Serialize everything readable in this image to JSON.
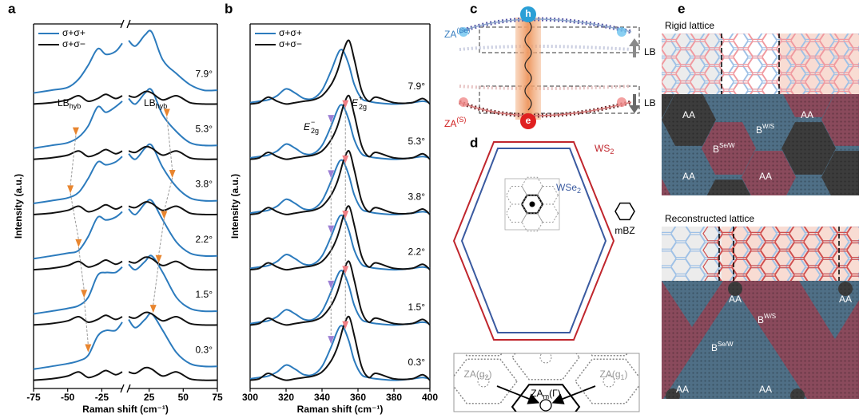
{
  "chart_data": [
    {
      "type": "line",
      "panel": "a",
      "xlabel": "Raman shift (cm⁻¹)",
      "ylabel": "Intensity (a.u.)",
      "x": [
        -75,
        -62,
        -50,
        -42,
        -35,
        -28,
        -22,
        -15,
        -10,
        10,
        15,
        22,
        27,
        35,
        45,
        55,
        65,
        75
      ],
      "xlim": [
        -75,
        75
      ],
      "xticks": [
        -75,
        -50,
        -25,
        25,
        50,
        75
      ],
      "xbreak": [
        -10,
        10
      ],
      "ylim": [
        -0.3,
        12.9
      ],
      "legend": "upper left",
      "labels": [
        "7.9°",
        "5.3°",
        "3.8°",
        "2.2°",
        "1.5°",
        "0.3°"
      ],
      "series": [
        {
          "name": "σ+σ+",
          "color": "#2c7bbd",
          "values": [
            [
              10.4,
              10.5,
              10.6,
              10.9,
              11.4,
              12.0,
              11.8,
              11.9,
              12.2,
              12.3,
              12.1,
              12.5,
              12.6,
              11.6,
              11.1,
              10.7,
              10.5,
              10.5
            ],
            [
              8.4,
              8.5,
              8.6,
              8.8,
              9.2,
              9.9,
              9.7,
              9.9,
              10.1,
              10.2,
              10.0,
              10.4,
              10.5,
              9.6,
              9.0,
              8.6,
              8.5,
              8.5
            ],
            [
              6.4,
              6.5,
              6.6,
              6.8,
              7.3,
              7.9,
              7.8,
              7.9,
              8.1,
              8.2,
              8.0,
              8.4,
              8.5,
              7.7,
              7.0,
              6.6,
              6.5,
              6.5
            ],
            [
              4.4,
              4.5,
              4.6,
              4.7,
              5.2,
              5.9,
              5.8,
              5.9,
              6.1,
              6.2,
              6.0,
              6.4,
              6.5,
              5.8,
              5.0,
              4.6,
              4.5,
              4.5
            ],
            [
              2.4,
              2.5,
              2.6,
              2.7,
              3.0,
              3.8,
              3.9,
              3.9,
              4.1,
              4.2,
              4.0,
              4.3,
              4.5,
              3.9,
              3.0,
              2.6,
              2.5,
              2.5
            ],
            [
              0.4,
              0.5,
              0.6,
              0.7,
              0.9,
              1.6,
              1.8,
              1.8,
              2.1,
              2.2,
              1.9,
              2.2,
              2.4,
              1.8,
              1.0,
              0.6,
              0.5,
              0.5
            ]
          ]
        },
        {
          "name": "σ+σ−",
          "color": "#111111",
          "values": [
            [
              10,
              10.05,
              10.15,
              10.3,
              10.1,
              10.2,
              10.35,
              10.2,
              10.3,
              10.3,
              10.25,
              10.45,
              10.4,
              10.15,
              10.3,
              10.05,
              10,
              10
            ],
            [
              8,
              8.05,
              8.15,
              8.3,
              8.1,
              8.2,
              8.35,
              8.2,
              8.3,
              8.3,
              8.25,
              8.45,
              8.4,
              8.15,
              8.3,
              8.05,
              8,
              8
            ],
            [
              6,
              6.05,
              6.15,
              6.3,
              6.1,
              6.2,
              6.35,
              6.2,
              6.3,
              6.3,
              6.25,
              6.45,
              6.4,
              6.15,
              6.3,
              6.05,
              6,
              6
            ],
            [
              4,
              4.05,
              4.15,
              4.3,
              4.1,
              4.2,
              4.35,
              4.2,
              4.3,
              4.3,
              4.25,
              4.45,
              4.4,
              4.15,
              4.3,
              4.05,
              4,
              4
            ],
            [
              2,
              2.05,
              2.15,
              2.3,
              2.1,
              2.2,
              2.35,
              2.2,
              2.3,
              2.3,
              2.25,
              2.45,
              2.4,
              2.15,
              2.3,
              2.05,
              2,
              2
            ],
            [
              0,
              0.05,
              0.15,
              0.3,
              0.1,
              0.2,
              0.35,
              0.2,
              0.3,
              0.3,
              0.25,
              0.45,
              0.4,
              0.15,
              0.3,
              0.05,
              0,
              0
            ]
          ]
        }
      ],
      "markers": [
        {
          "color": "#e8852f",
          "x": [
            null,
            -44,
            -48,
            -42,
            -38,
            -35
          ]
        },
        {
          "color": "#e8852f",
          "x": [
            null,
            38,
            42,
            36,
            32,
            28
          ]
        }
      ],
      "annotations": [
        {
          "text": "LB",
          "sub": "hyb"
        },
        {
          "text": "LB",
          "sub": "hyb"
        }
      ]
    },
    {
      "type": "line",
      "panel": "b",
      "xlabel": "Raman shift (cm⁻¹)",
      "ylabel": "Intensity (a.u.)",
      "x": [
        300,
        305,
        310,
        315,
        320,
        325,
        330,
        335,
        340,
        345,
        348,
        350,
        352,
        355,
        358,
        362,
        366,
        370,
        380,
        390,
        396,
        400
      ],
      "xlim": [
        300,
        400
      ],
      "xticks": [
        300,
        320,
        340,
        360,
        380,
        400
      ],
      "ylim": [
        -0.3,
        12.9
      ],
      "legend": "upper left",
      "labels": [
        "7.9°",
        "5.3°",
        "3.8°",
        "2.2°",
        "1.5°",
        "0.3°"
      ],
      "series": [
        {
          "name": "σ+σ+",
          "color": "#2c7bbd",
          "values": [
            [
              10.05,
              10.1,
              10.15,
              10.3,
              10.55,
              10.4,
              10.2,
              10.2,
              10.5,
              11.2,
              11.7,
              11.95,
              11.9,
              11.4,
              10.7,
              10.2,
              10.1,
              10.05,
              10,
              10.05,
              10.1,
              10.05
            ],
            [
              8.05,
              8.1,
              8.15,
              8.3,
              8.55,
              8.4,
              8.2,
              8.2,
              8.5,
              9.2,
              9.7,
              9.95,
              9.9,
              9.4,
              8.7,
              8.2,
              8.1,
              8.05,
              8,
              8.05,
              8.1,
              8.05
            ],
            [
              6.05,
              6.1,
              6.15,
              6.3,
              6.55,
              6.4,
              6.2,
              6.2,
              6.5,
              7.2,
              7.7,
              7.95,
              7.9,
              7.4,
              6.7,
              6.2,
              6.1,
              6.05,
              6,
              6.05,
              6.1,
              6.05
            ],
            [
              4.05,
              4.1,
              4.15,
              4.3,
              4.55,
              4.4,
              4.2,
              4.2,
              4.5,
              5.2,
              5.7,
              5.95,
              5.9,
              5.4,
              4.7,
              4.2,
              4.1,
              4.05,
              4,
              4.05,
              4.1,
              4.05
            ],
            [
              2.05,
              2.1,
              2.15,
              2.3,
              2.55,
              2.4,
              2.2,
              2.2,
              2.5,
              3.2,
              3.7,
              3.95,
              3.9,
              3.4,
              2.7,
              2.2,
              2.1,
              2.05,
              2,
              2.05,
              2.1,
              2.05
            ],
            [
              0.05,
              0.1,
              0.15,
              0.3,
              0.55,
              0.4,
              0.2,
              0.2,
              0.5,
              1.2,
              1.7,
              1.95,
              1.9,
              1.4,
              0.7,
              0.2,
              0.1,
              0.05,
              0,
              0.05,
              0.1,
              0.05
            ]
          ]
        },
        {
          "name": "σ+σ−",
          "color": "#111111",
          "values": [
            [
              10,
              10.05,
              10.25,
              10.1,
              10,
              10.05,
              10.1,
              10.15,
              10.3,
              10.7,
              11.1,
              11.5,
              11.95,
              12.3,
              11.6,
              10.5,
              10.1,
              10.25,
              10.05,
              10.05,
              10.2,
              10
            ],
            [
              8,
              8.05,
              8.25,
              8.1,
              8,
              8.05,
              8.1,
              8.15,
              8.3,
              8.7,
              9.1,
              9.5,
              9.95,
              10.3,
              9.6,
              8.5,
              8.1,
              8.25,
              8.05,
              8.05,
              8.2,
              8
            ],
            [
              6,
              6.05,
              6.25,
              6.1,
              6,
              6.05,
              6.1,
              6.15,
              6.3,
              6.7,
              7.1,
              7.5,
              7.95,
              8.3,
              7.6,
              6.5,
              6.1,
              6.25,
              6.05,
              6.05,
              6.2,
              6
            ],
            [
              4,
              4.05,
              4.25,
              4.1,
              4,
              4.05,
              4.1,
              4.15,
              4.3,
              4.7,
              5.1,
              5.5,
              5.95,
              6.3,
              5.6,
              4.5,
              4.1,
              4.25,
              4.05,
              4.05,
              4.2,
              4
            ],
            [
              2,
              2.05,
              2.25,
              2.1,
              2,
              2.05,
              2.1,
              2.15,
              2.3,
              2.7,
              3.1,
              3.5,
              3.95,
              4.3,
              3.6,
              2.5,
              2.1,
              2.25,
              2.05,
              2.05,
              2.2,
              2
            ],
            [
              0,
              0.05,
              0.25,
              0.1,
              0,
              0.05,
              0.1,
              0.15,
              0.3,
              0.7,
              1.1,
              1.5,
              1.95,
              2.3,
              1.6,
              0.5,
              0.1,
              0.25,
              0.05,
              0.05,
              0.2,
              0
            ]
          ]
        }
      ],
      "markers": [
        {
          "color": "#9b7fd4",
          "x": [
            null,
            345,
            345,
            345,
            345,
            345
          ]
        },
        {
          "color": "#f07f86",
          "x": [
            null,
            353,
            353,
            353,
            353,
            353
          ]
        }
      ],
      "annotations": [
        {
          "text": "E",
          "sub": "2g",
          "sup": "−"
        },
        {
          "text": "E",
          "sub": "2g",
          "sup": "+"
        }
      ]
    }
  ],
  "diagrams": {
    "c": {
      "label": "c",
      "za_top": {
        "text": "ZA",
        "sup": "(Se)"
      },
      "za_bottom": {
        "text": "ZA",
        "sup": "(S)"
      },
      "lb_top": "LB",
      "lb_bottom": "LB",
      "hole": "h",
      "electron": "e"
    },
    "d": {
      "label": "d",
      "ws2": {
        "text": "WS",
        "sub": "2"
      },
      "wse2": {
        "text": "WSe",
        "sub": "2"
      },
      "mbz": "mBZ",
      "za_g2": {
        "text": "ZA(g",
        "sub": "2",
        "end": ")"
      },
      "za_g1": {
        "text": "ZA(g",
        "sub": "1",
        "end": ")"
      },
      "za_m": {
        "text": "ZA",
        "sub": "m",
        "end": "(Γ)"
      }
    },
    "e": {
      "label": "e",
      "rigid": "Rigid lattice",
      "reconstructed": "Reconstructed lattice",
      "rigid_aa": [
        "AA",
        "AA",
        "AA",
        "AA"
      ],
      "rigid_bws": {
        "text": "B",
        "sup": "W/S"
      },
      "rigid_bsew": {
        "text": "B",
        "sup": "Se/W"
      },
      "recon_aa": [
        "AA",
        "AA",
        "AA",
        "AA"
      ],
      "recon_bws": {
        "text": "B",
        "sup": "W/S"
      },
      "recon_bsew": {
        "text": "B",
        "sup": "Se/W"
      }
    }
  }
}
